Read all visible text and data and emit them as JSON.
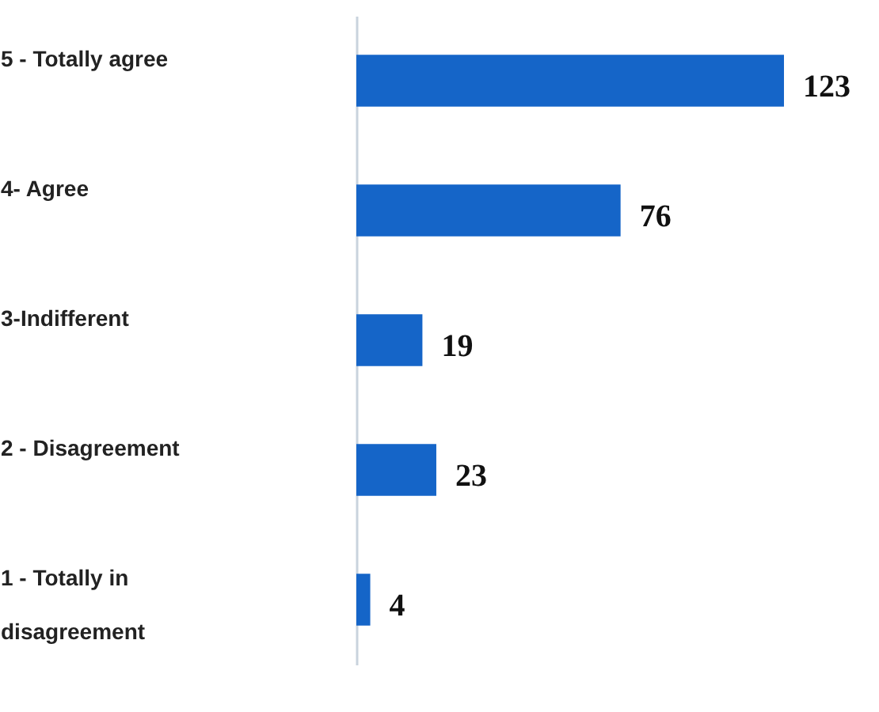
{
  "chart_data": {
    "type": "bar",
    "orientation": "horizontal",
    "categories": [
      "5 - Totally agree",
      "4- Agree",
      "3-Indifferent",
      "2 - Disagreement",
      "1 - Totally in disagreement"
    ],
    "values": [
      123,
      76,
      19,
      23,
      4
    ],
    "color": "#1565c8",
    "data_labels": true
  }
}
